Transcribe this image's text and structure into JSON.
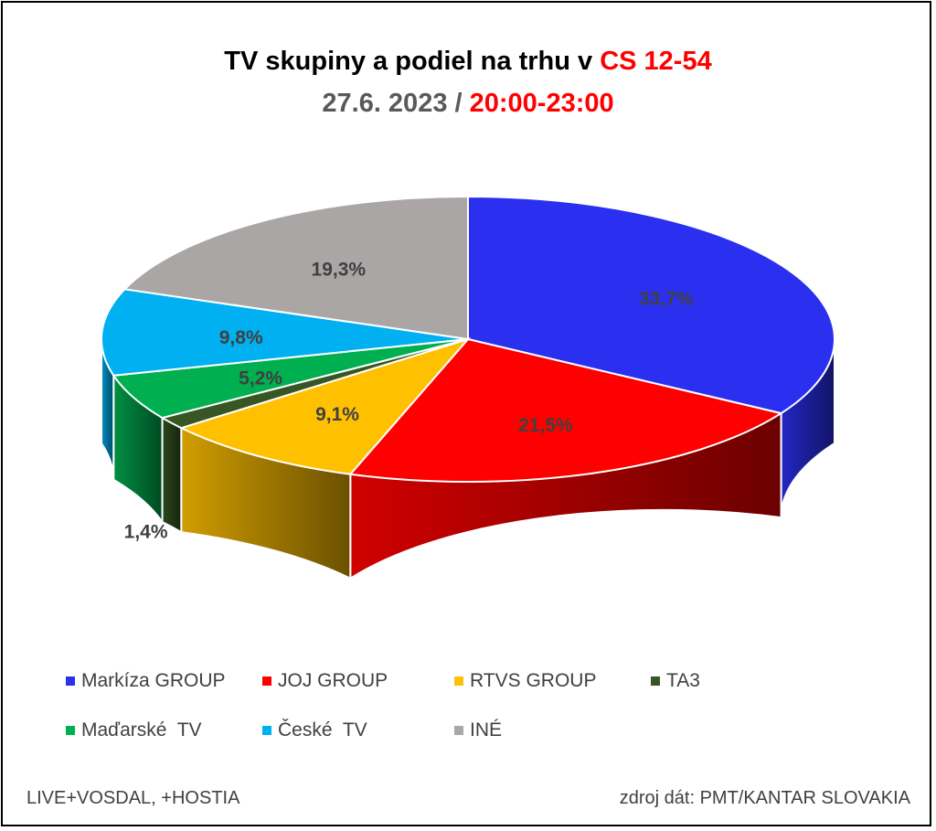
{
  "title": {
    "main": "TV skupiny a podiel na trhu v ",
    "highlight": "CS 12-54"
  },
  "subtitle": {
    "date": "27.6. 2023 / ",
    "time": "20:00-23:00"
  },
  "chart_data": {
    "type": "pie",
    "style": "3d",
    "categories": [
      "Markíza GROUP",
      "JOJ GROUP",
      "RTVS GROUP",
      "TA3",
      "Maďarské  TV",
      "České  TV",
      "INÉ"
    ],
    "values": [
      33.7,
      21.5,
      9.1,
      1.4,
      5.2,
      9.8,
      19.3
    ],
    "value_labels": [
      "33,7%",
      "21,5%",
      "9,1%",
      "1,4%",
      "5,2%",
      "9,8%",
      "19,3%"
    ],
    "colors": [
      "#2b30f0",
      "#ff0000",
      "#ffc000",
      "#375623",
      "#00b050",
      "#00b0f0",
      "#aaa6a6"
    ],
    "legend_position": "bottom"
  },
  "footer": {
    "left": "LIVE+VOSDAL, +HOSTIA",
    "right": "zdroj dát: PMT/KANTAR SLOVAKIA"
  }
}
